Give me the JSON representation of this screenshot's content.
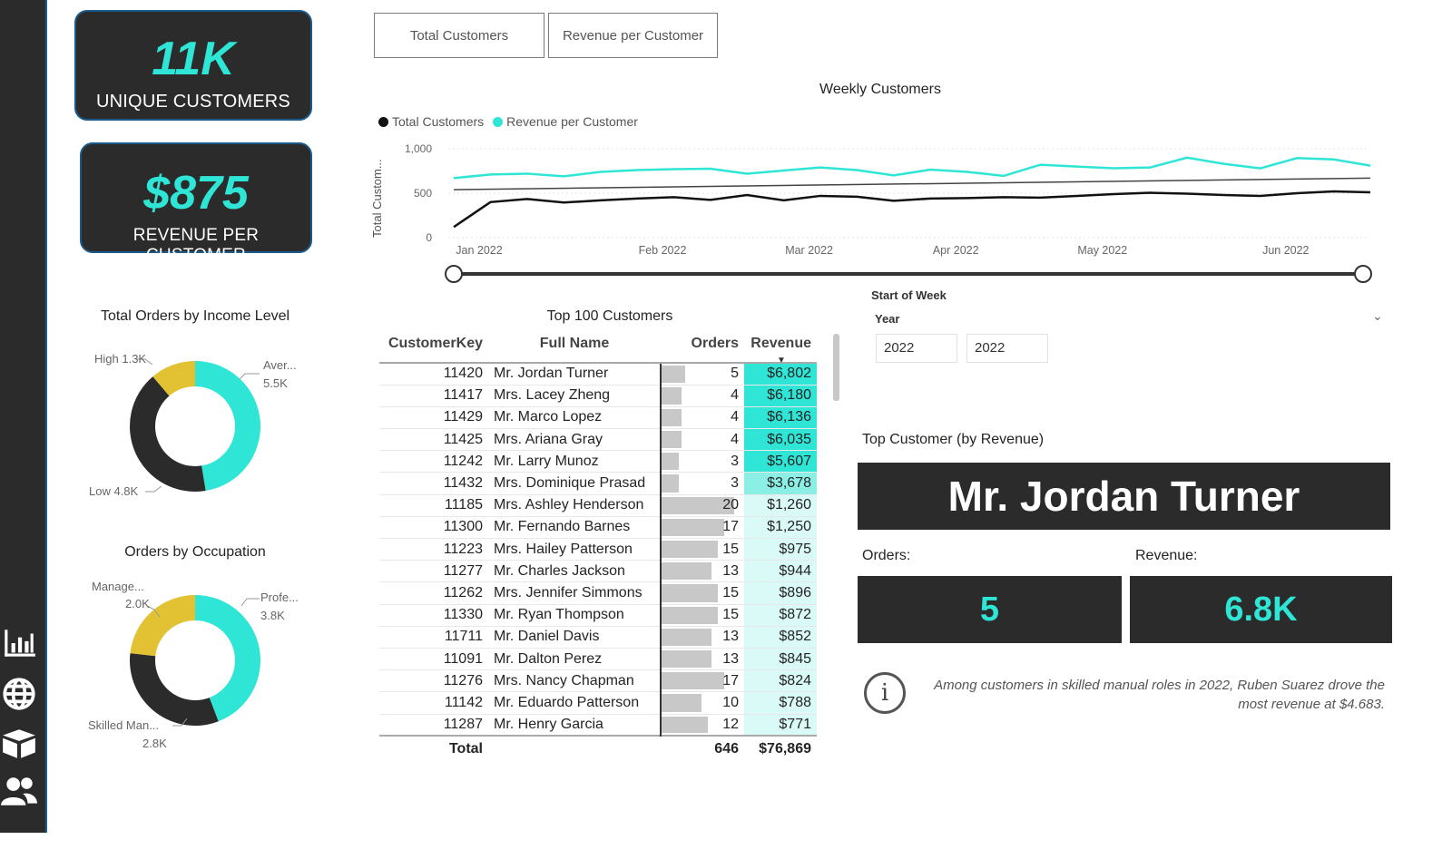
{
  "nav": {
    "icons": [
      "bar-chart-icon",
      "globe-icon",
      "box-icon",
      "users-icon"
    ]
  },
  "kpis": {
    "unique_customers": {
      "value": "11K",
      "label": "UNIQUE CUSTOMERS"
    },
    "revenue_per_customer": {
      "value": "$875",
      "label": "REVENUE PER CUSTOMER"
    }
  },
  "buttons": {
    "total_customers": "Total Customers",
    "revenue_per_customer": "Revenue per Customer"
  },
  "weekly_chart": {
    "title": "Weekly Customers",
    "legend": [
      "Total Customers",
      "Revenue per Customer"
    ],
    "ylabel": "Total Custom...",
    "yticks": [
      "1,000",
      "500",
      "0"
    ],
    "xticks": [
      "Jan 2022",
      "Feb 2022",
      "Mar 2022",
      "Apr 2022",
      "May 2022",
      "Jun 2022"
    ],
    "colors": {
      "total": "#111111",
      "revenue": "#2ee5d6",
      "trend": "#444444"
    }
  },
  "chart_data": [
    {
      "type": "line",
      "title": "Weekly Customers",
      "ylabel": "Total Custom...",
      "ylim": [
        0,
        1000
      ],
      "x": [
        "2022-01-02",
        "2022-01-09",
        "2022-01-16",
        "2022-01-23",
        "2022-01-30",
        "2022-02-06",
        "2022-02-13",
        "2022-02-20",
        "2022-02-27",
        "2022-03-06",
        "2022-03-13",
        "2022-03-20",
        "2022-03-27",
        "2022-04-03",
        "2022-04-10",
        "2022-04-17",
        "2022-04-24",
        "2022-05-01",
        "2022-05-08",
        "2022-05-15",
        "2022-05-22",
        "2022-05-29",
        "2022-06-05",
        "2022-06-12",
        "2022-06-19",
        "2022-06-26"
      ],
      "series": [
        {
          "name": "Total Customers",
          "values": [
            120,
            400,
            435,
            395,
            420,
            440,
            455,
            425,
            480,
            420,
            470,
            460,
            415,
            440,
            445,
            455,
            450,
            470,
            490,
            505,
            495,
            480,
            470,
            500,
            520,
            510
          ]
        },
        {
          "name": "Revenue per Customer",
          "values": [
            670,
            710,
            720,
            690,
            740,
            760,
            770,
            775,
            720,
            755,
            790,
            760,
            700,
            765,
            740,
            695,
            820,
            800,
            780,
            790,
            900,
            830,
            780,
            895,
            880,
            810
          ]
        }
      ],
      "trend": [
        540,
        670
      ]
    },
    {
      "type": "pie",
      "title": "Total Orders by Income Level",
      "labels": [
        "Aver...",
        "Low",
        "High"
      ],
      "display": [
        "5.5K",
        "4.8K",
        "1.3K"
      ],
      "values": [
        5500,
        4800,
        1300
      ],
      "colors": [
        "#2ee5d6",
        "#2b2b2b",
        "#e2c133"
      ]
    },
    {
      "type": "pie",
      "title": "Orders by Occupation",
      "labels": [
        "Profe...",
        "Skilled Man...",
        "Manage..."
      ],
      "display": [
        "3.8K",
        "2.8K",
        "2.0K"
      ],
      "values": [
        3800,
        2800,
        2000
      ],
      "colors": [
        "#2ee5d6",
        "#2b2b2b",
        "#e2c133"
      ]
    }
  ],
  "donut_income": {
    "title": "Total Orders by Income Level",
    "high": "High 1.3K",
    "aver_name": "Aver...",
    "aver_value": "5.5K",
    "low": "Low 4.8K"
  },
  "donut_occupation": {
    "title": "Orders by Occupation",
    "manage_name": "Manage...",
    "manage_value": "2.0K",
    "profe_name": "Profe...",
    "profe_value": "3.8K",
    "skilled_name": "Skilled Man...",
    "skilled_value": "2.8K"
  },
  "slider": {
    "label": "Start of Week"
  },
  "year_filter": {
    "label": "Year",
    "from": "2022",
    "to": "2022"
  },
  "table": {
    "title": "Top 100 Customers",
    "headers": [
      "CustomerKey",
      "Full Name",
      "Orders",
      "Revenue"
    ],
    "rows": [
      [
        "11420",
        "Mr. Jordan Turner",
        "5",
        "$6,802"
      ],
      [
        "11417",
        "Mrs. Lacey Zheng",
        "4",
        "$6,180"
      ],
      [
        "11429",
        "Mr. Marco Lopez",
        "4",
        "$6,136"
      ],
      [
        "11425",
        "Mrs. Ariana Gray",
        "4",
        "$6,035"
      ],
      [
        "11242",
        "Mr. Larry Munoz",
        "3",
        "$5,607"
      ],
      [
        "11432",
        "Mrs. Dominique Prasad",
        "3",
        "$3,678"
      ],
      [
        "11185",
        "Mrs. Ashley Henderson",
        "20",
        "$1,260"
      ],
      [
        "11300",
        "Mr. Fernando Barnes",
        "17",
        "$1,250"
      ],
      [
        "11223",
        "Mrs. Hailey Patterson",
        "15",
        "$975"
      ],
      [
        "11277",
        "Mr. Charles Jackson",
        "13",
        "$944"
      ],
      [
        "11262",
        "Mrs. Jennifer Simmons",
        "15",
        "$896"
      ],
      [
        "11330",
        "Mr. Ryan Thompson",
        "15",
        "$872"
      ],
      [
        "11711",
        "Mr. Daniel Davis",
        "13",
        "$852"
      ],
      [
        "11091",
        "Mr. Dalton Perez",
        "13",
        "$845"
      ],
      [
        "11276",
        "Mrs. Nancy Chapman",
        "17",
        "$824"
      ],
      [
        "11142",
        "Mr. Eduardo Patterson",
        "10",
        "$788"
      ],
      [
        "11287",
        "Mr. Henry Garcia",
        "12",
        "$771"
      ]
    ],
    "total": {
      "label": "Total",
      "orders": "646",
      "revenue": "$76,869"
    }
  },
  "top_customer": {
    "title": "Top Customer (by Revenue)",
    "name": "Mr. Jordan Turner",
    "orders_label": "Orders:",
    "orders_value": "5",
    "revenue_label": "Revenue:",
    "revenue_value": "6.8K"
  },
  "insight": {
    "text": "Among customers in skilled manual roles in 2022, Ruben Suarez drove the most revenue at $4.683."
  }
}
